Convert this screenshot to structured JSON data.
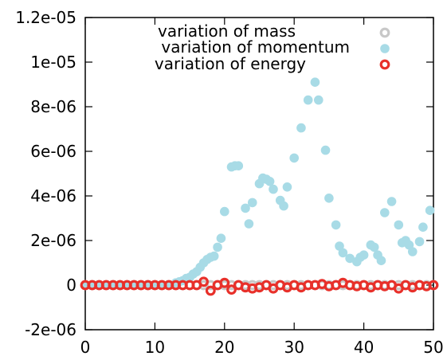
{
  "chart_data": {
    "type": "scatter",
    "xlim": [
      0,
      50
    ],
    "ylim": [
      -2e-06,
      1.2e-05
    ],
    "x_ticks": [
      "0",
      "10",
      "20",
      "30",
      "40",
      "50"
    ],
    "y_ticks": [
      "-2e-06",
      "0",
      "2e-06",
      "4e-06",
      "6e-06",
      "8e-06",
      "1e-05",
      "1.2e-05"
    ],
    "legend_position": "top-right",
    "grid": false,
    "series": [
      {
        "name": "variation of mass",
        "color": "#c8c8c8",
        "marker": "open-circle",
        "x": [
          0,
          1,
          2,
          3,
          4,
          5,
          6,
          7,
          8,
          9,
          10,
          11,
          12,
          13,
          14,
          15,
          16,
          17,
          18,
          19,
          20,
          21,
          22,
          23,
          24,
          25,
          26,
          27,
          28,
          29,
          30,
          31,
          32,
          33,
          34,
          35,
          36,
          37,
          38,
          39,
          40,
          41,
          42,
          43,
          44,
          45,
          46,
          47,
          48,
          49,
          50
        ],
        "y": [
          0,
          0,
          0,
          0,
          0,
          0,
          0,
          0,
          0,
          0,
          0,
          0,
          0,
          0,
          0,
          0,
          0,
          0,
          0,
          0,
          0,
          0,
          0,
          0,
          0,
          0,
          0,
          0,
          0,
          0,
          0,
          0,
          0,
          0,
          0,
          0,
          0,
          0,
          0,
          0,
          0,
          0,
          0,
          0,
          0,
          0,
          0,
          0,
          0,
          0,
          0
        ]
      },
      {
        "name": "variation of momentum",
        "color": "#a8dbe6",
        "marker": "filled-circle",
        "x": [
          0,
          1,
          2,
          3,
          4,
          5,
          6,
          7,
          8,
          9,
          10,
          11,
          12,
          13,
          13.5,
          14,
          14.5,
          15,
          15.5,
          16,
          16.5,
          17,
          17.5,
          18,
          18.5,
          19,
          19.5,
          20,
          21,
          21.5,
          22,
          23,
          23.5,
          24,
          25,
          25.5,
          26,
          26.5,
          27,
          28,
          28.5,
          29,
          30,
          31,
          32,
          33,
          33.5,
          34.5,
          35,
          36,
          36.5,
          37,
          38,
          39,
          39.5,
          40,
          41,
          41.5,
          42,
          42.5,
          43,
          44,
          45,
          45.5,
          46,
          46.5,
          47,
          48,
          48.5,
          49.5
        ],
        "y": [
          0,
          0,
          0,
          0,
          0,
          0,
          0,
          0,
          0,
          0,
          0,
          0,
          0,
          1e-07,
          1.5e-07,
          2e-07,
          3e-07,
          3.5e-07,
          5e-07,
          6e-07,
          8e-07,
          1e-06,
          1.15e-06,
          1.25e-06,
          1.3e-06,
          1.7e-06,
          2.1e-06,
          3.3e-06,
          5.3e-06,
          5.35e-06,
          5.35e-06,
          3.45e-06,
          2.75e-06,
          3.7e-06,
          4.55e-06,
          4.8e-06,
          4.75e-06,
          4.65e-06,
          4.3e-06,
          3.8e-06,
          3.55e-06,
          4.4e-06,
          5.7e-06,
          7.05e-06,
          8.3e-06,
          9.1e-06,
          8.3e-06,
          6.05e-06,
          3.9e-06,
          2.7e-06,
          1.75e-06,
          1.45e-06,
          1.2e-06,
          1.05e-06,
          1.25e-06,
          1.35e-06,
          1.8e-06,
          1.7e-06,
          1.35e-06,
          1.1e-06,
          3.25e-06,
          3.75e-06,
          2.7e-06,
          1.9e-06,
          2e-06,
          1.8e-06,
          1.5e-06,
          1.95e-06,
          2.6e-06,
          3.35e-06
        ]
      },
      {
        "name": "variation of energy",
        "color": "#e8302a",
        "marker": "open-circle",
        "x": [
          0,
          1,
          2,
          3,
          4,
          5,
          6,
          7,
          8,
          9,
          10,
          11,
          12,
          13,
          14,
          15,
          16,
          17,
          18,
          19,
          20,
          21,
          22,
          23,
          24,
          25,
          26,
          27,
          28,
          29,
          30,
          31,
          32,
          33,
          34,
          35,
          36,
          37,
          38,
          39,
          40,
          41,
          42,
          43,
          44,
          45,
          46,
          47,
          48,
          49,
          50
        ],
        "y": [
          0,
          0,
          0,
          0,
          0,
          0,
          0,
          0,
          0,
          0,
          0,
          0,
          0,
          0,
          0,
          0,
          0,
          1.5e-07,
          -2.5e-07,
          0,
          1e-07,
          -2e-07,
          0,
          -1e-07,
          -1.5e-07,
          -1e-07,
          0,
          -1.5e-07,
          0,
          -1e-07,
          0,
          -1e-07,
          0,
          0,
          5e-08,
          -5e-08,
          0,
          1e-07,
          0,
          -5e-08,
          0,
          -1e-07,
          0,
          -5e-08,
          0,
          -1.5e-07,
          0,
          -1e-07,
          0,
          -5e-08,
          0
        ]
      }
    ]
  }
}
